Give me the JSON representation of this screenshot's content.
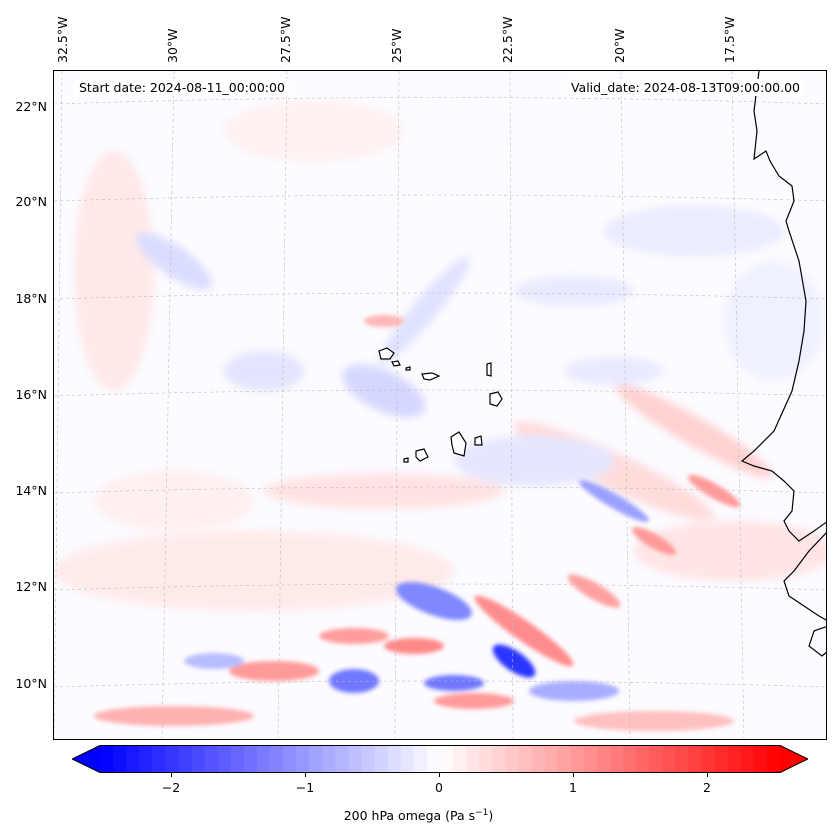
{
  "map": {
    "start_date_label": "Start date: 2024-08-11_00:00:00",
    "valid_date_label": "Valid_date: 2024-08-13T09:00:00.00",
    "lon_ticks": [
      "32.5°W",
      "30°W",
      "27.5°W",
      "25°W",
      "22.5°W",
      "20°W",
      "17.5°W"
    ],
    "lat_ticks": [
      "22°N",
      "20°N",
      "18°N",
      "16°N",
      "14°N",
      "12°N",
      "10°N"
    ],
    "colors": {
      "negative": "#0000ff",
      "neutral": "#ffffff",
      "positive": "#ff0000",
      "gridline": "#bbbbbb",
      "coastline": "#000000"
    }
  },
  "colorbar": {
    "min": -2.6,
    "max": 2.6,
    "ticks": [
      "−2",
      "−1",
      "0",
      "1",
      "2"
    ],
    "tick_values": [
      -2,
      -1,
      0,
      1,
      2
    ],
    "label_prefix": "200 hPa omega (Pa s",
    "label_exp": "−1",
    "label_suffix": ")"
  }
}
